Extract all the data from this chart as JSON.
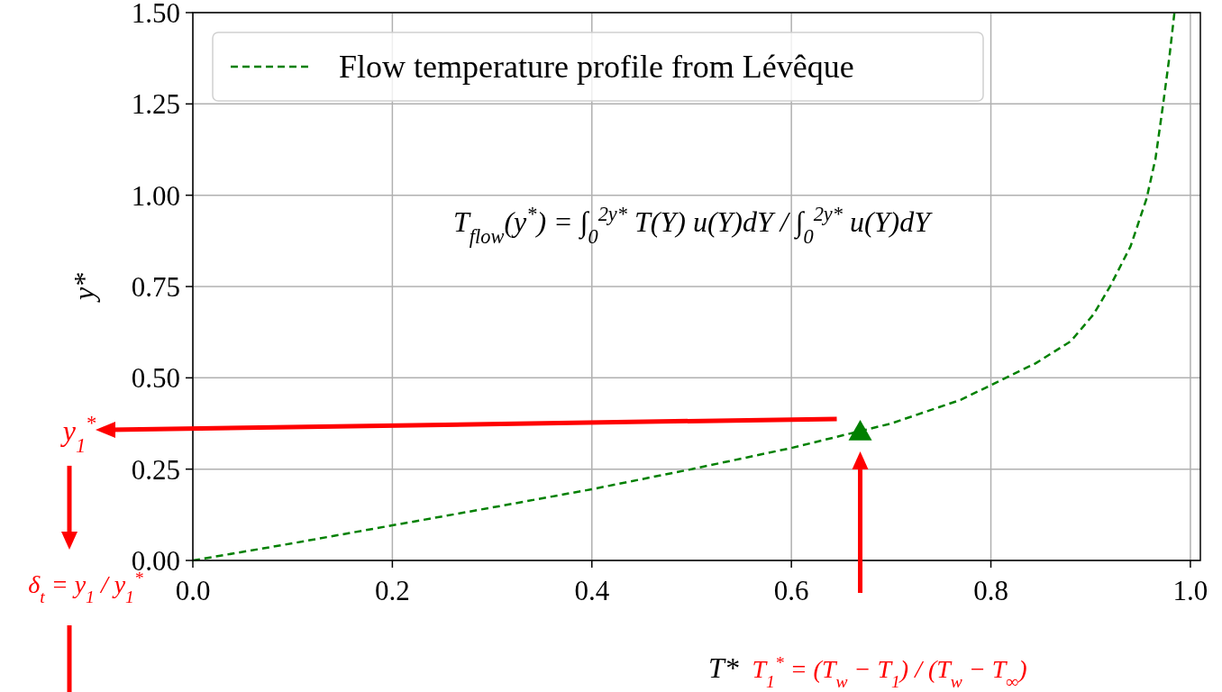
{
  "chart_data": {
    "type": "line",
    "xlabel": "T*",
    "ylabel": "y*",
    "xlim": [
      0,
      1.01
    ],
    "ylim": [
      0,
      1.5
    ],
    "xticks": [
      {
        "value": 0,
        "label": "0.0"
      },
      {
        "value": 0.2,
        "label": "0.2"
      },
      {
        "value": 0.4,
        "label": "0.4"
      },
      {
        "value": 0.6,
        "label": "0.6"
      },
      {
        "value": 0.8,
        "label": "0.8"
      },
      {
        "value": 1,
        "label": "1.0"
      }
    ],
    "yticks": [
      {
        "value": 0,
        "label": "0.00"
      },
      {
        "value": 0.25,
        "label": "0.25"
      },
      {
        "value": 0.5,
        "label": "0.50"
      },
      {
        "value": 0.75,
        "label": "0.75"
      },
      {
        "value": 1,
        "label": "1.00"
      },
      {
        "value": 1.25,
        "label": "1.25"
      },
      {
        "value": 1.5,
        "label": "1.50"
      }
    ],
    "grid": true,
    "legend": "top left",
    "series": [
      {
        "name": "Flow temperature profile from Lévêque",
        "color": "#008000",
        "line_style": "dashed",
        "x": [
          0,
          0.1,
          0.2,
          0.3,
          0.4,
          0.5,
          0.6,
          0.7,
          0.77,
          0.8,
          0.845,
          0.88,
          0.903,
          0.92,
          0.94,
          0.956,
          0.965,
          0.973,
          0.979,
          0.984
        ],
        "values": [
          0,
          0.047,
          0.096,
          0.145,
          0.195,
          0.25,
          0.308,
          0.375,
          0.44,
          0.48,
          0.54,
          0.6,
          0.674,
          0.753,
          0.86,
          0.99,
          1.1,
          1.256,
          1.38,
          1.5
        ]
      },
      {
        "type": "scatter",
        "color": "#008000",
        "marker": "triangle",
        "x": [
          0.669
        ],
        "values": [
          0.353
        ]
      }
    ],
    "annotations": [
      "T$_{flow}$(y$^{*}$) = ∫$_{0}$$^{2y*}$ T(Y) u(Y)dY / ∫$_{0}$$^{2y*}$ u(Y)dY",
      "y$_{1}$$^{*}$",
      "δ$_{t}$ = y$_{1}$ / y$_{1}$$^{*}$",
      "T$_{1}$$^{*}$ = (T$_{w}$ − T$_{1}$) / (T$_{w}$ − T$_{∞}$)"
    ]
  }
}
